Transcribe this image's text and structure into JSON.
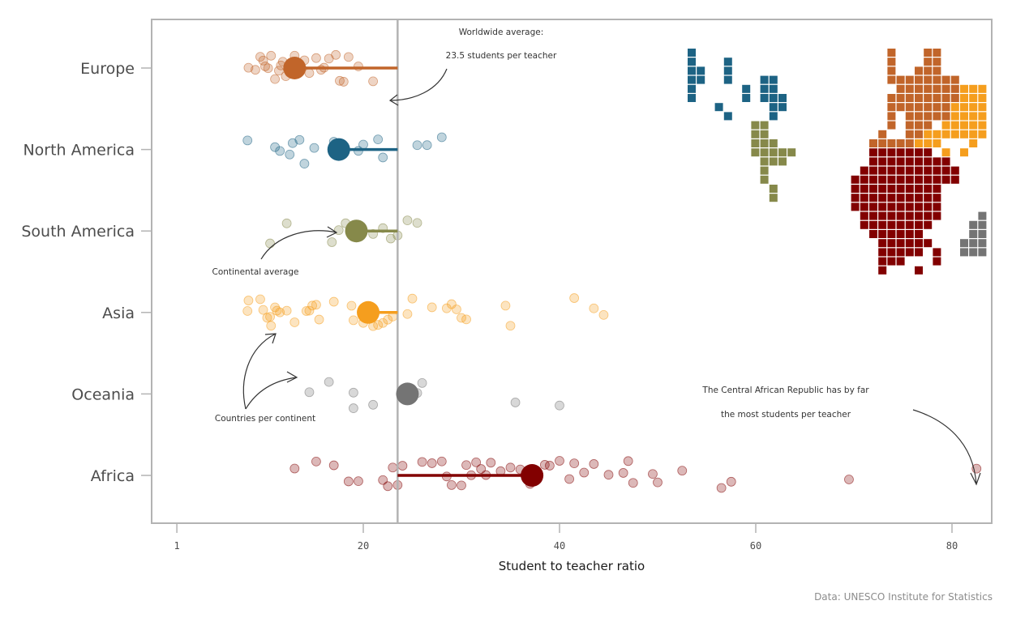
{
  "chart_data": {
    "type": "scatter",
    "title": "",
    "xlabel": "Student to teacher ratio",
    "ylabel": "",
    "xlim": [
      0,
      85
    ],
    "x_ticks": [
      1,
      20,
      40,
      60,
      80
    ],
    "grid": false,
    "categories": [
      "Europe",
      "North America",
      "South America",
      "Asia",
      "Oceania",
      "Africa"
    ],
    "worldwide_average": 23.5,
    "series": [
      {
        "name": "Europe",
        "color": "#C1652A",
        "average": 13.0,
        "points": [
          8.3,
          9.0,
          9.5,
          9.8,
          10.0,
          10.3,
          10.6,
          11.0,
          11.4,
          11.6,
          11.8,
          12.1,
          12.5,
          13.0,
          13.7,
          14.0,
          14.5,
          15.2,
          15.7,
          16.0,
          16.5,
          17.2,
          17.6,
          18.0,
          18.5,
          19.5,
          21.0
        ]
      },
      {
        "name": "North America",
        "color": "#1D6384",
        "average": 17.5,
        "points": [
          8.2,
          11.0,
          11.5,
          12.5,
          12.8,
          13.5,
          14.0,
          15.0,
          17.0,
          19.5,
          20.0,
          21.5,
          22.0,
          25.5,
          26.5,
          28.0
        ]
      },
      {
        "name": "South America",
        "color": "#86894A",
        "average": 19.3,
        "points": [
          10.5,
          12.2,
          16.8,
          17.5,
          18.2,
          21.0,
          22.0,
          22.8,
          23.5,
          24.5,
          25.5
        ]
      },
      {
        "name": "Asia",
        "color": "#F59E1E",
        "average": 20.5,
        "points": [
          8.2,
          8.3,
          9.5,
          9.8,
          10.2,
          10.5,
          10.6,
          11.0,
          11.2,
          11.5,
          12.2,
          13.0,
          14.2,
          14.5,
          14.8,
          15.2,
          15.5,
          17.0,
          18.8,
          19.0,
          20.0,
          21.0,
          21.5,
          22.0,
          22.5,
          23.0,
          24.5,
          25.0,
          27.0,
          28.5,
          29.0,
          29.5,
          30.0,
          30.5,
          34.5,
          35.0,
          41.5,
          43.5,
          44.5
        ]
      },
      {
        "name": "Oceania",
        "color": "#747474",
        "average": 24.5,
        "points": [
          14.5,
          16.5,
          19.0,
          19.0,
          21.0,
          25.0,
          25.5,
          26.0,
          35.5,
          40.0
        ]
      },
      {
        "name": "Africa",
        "color": "#820000",
        "average": 37.2,
        "points": [
          13.0,
          15.2,
          17.0,
          18.5,
          19.5,
          22.0,
          22.5,
          23.0,
          23.5,
          24.0,
          26.0,
          27.0,
          28.0,
          28.5,
          29.0,
          30.0,
          30.5,
          31.0,
          31.5,
          32.0,
          32.5,
          33.0,
          34.0,
          35.0,
          36.0,
          37.0,
          38.5,
          39.0,
          40.0,
          41.0,
          41.5,
          42.5,
          43.5,
          45.0,
          46.5,
          47.0,
          47.5,
          49.5,
          50.0,
          52.5,
          56.5,
          57.5,
          69.5,
          82.5
        ]
      }
    ],
    "map_colors": [
      "#1D6384",
      "#C1652A",
      "#F59E1E",
      "#86894A",
      "#820000",
      "#747474"
    ]
  },
  "annotations": {
    "worldwide_line1": "Worldwide average:",
    "worldwide_line2": "23.5 students per teacher",
    "continental": "Continental average",
    "countries": "Countries per continent",
    "car_line1": "The Central African Republic has by far",
    "car_line2": "the most students per teacher"
  },
  "caption": "Data: UNESCO Institute for Statistics"
}
